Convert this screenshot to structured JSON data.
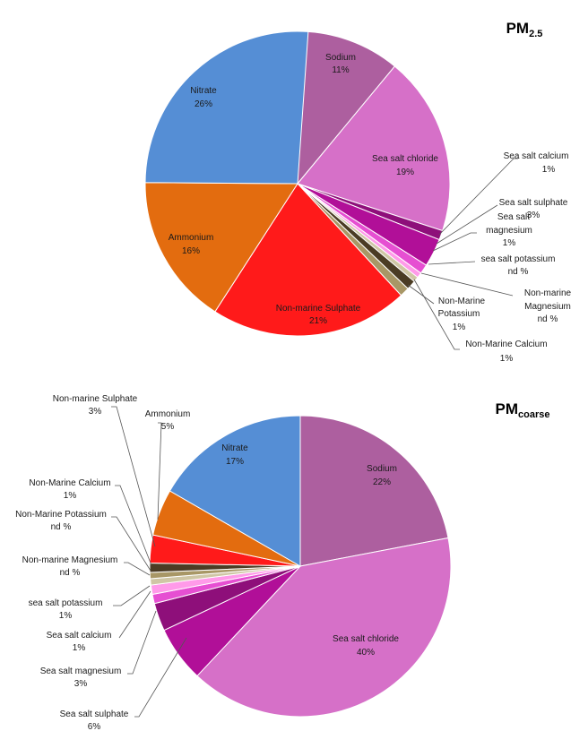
{
  "chart_data": [
    {
      "type": "pie",
      "title": "PM",
      "title_subscript": "2.5",
      "unit": "%",
      "slices": [
        {
          "name": "Sodium",
          "value": 11,
          "display": "11%",
          "color": "#ad5f9f"
        },
        {
          "name": "Sea salt chloride",
          "value": 19,
          "display": "19%",
          "color": "#d670c8"
        },
        {
          "name": "Sea salt calcium",
          "value": 1,
          "display": "1%",
          "color": "#8e0f7a"
        },
        {
          "name": "Sea salt sulphate",
          "value": 3,
          "display": "3%",
          "color": "#b10f98"
        },
        {
          "name": "Sea salt magnesium",
          "value": 1,
          "display": "1%",
          "color": "#e64fd2"
        },
        {
          "name": "sea salt potassium",
          "value": 0,
          "display": "nd %",
          "color": "#ff9ae9"
        },
        {
          "name": "Non-marine Magnesium",
          "value": 0,
          "display": "nd %",
          "color": "#cfc6a5"
        },
        {
          "name": "Non-Marine Calcium",
          "value": 1,
          "display": "1%",
          "color": "#4b3c24"
        },
        {
          "name": "Non-Marine Potassium",
          "value": 1,
          "display": "1%",
          "color": "#a89766"
        },
        {
          "name": "Non-marine Sulphate",
          "value": 21,
          "display": "21%",
          "color": "#ff1a1a"
        },
        {
          "name": "Ammonium",
          "value": 16,
          "display": "16%",
          "color": "#e36c0f"
        },
        {
          "name": "Nitrate",
          "value": 26,
          "display": "26%",
          "color": "#558ed5"
        }
      ]
    },
    {
      "type": "pie",
      "title": "PM",
      "title_subscript": "coarse",
      "unit": "%",
      "slices": [
        {
          "name": "Sodium",
          "value": 22,
          "display": "22%",
          "color": "#ad5f9f"
        },
        {
          "name": "Sea salt chloride",
          "value": 40,
          "display": "40%",
          "color": "#d670c8"
        },
        {
          "name": "Sea salt sulphate",
          "value": 6,
          "display": "6%",
          "color": "#b10f98"
        },
        {
          "name": "Sea salt magnesium",
          "value": 3,
          "display": "3%",
          "color": "#8e0f7a"
        },
        {
          "name": "Sea salt calcium",
          "value": 1,
          "display": "1%",
          "color": "#e64fd2"
        },
        {
          "name": "sea salt potassium",
          "value": 1,
          "display": "1%",
          "color": "#ff9ae9"
        },
        {
          "name": "Non-marine Magnesium",
          "value": 0,
          "display": "nd %",
          "color": "#cfc6a5"
        },
        {
          "name": "Non-Marine Potassium",
          "value": 0,
          "display": "nd %",
          "color": "#a89766"
        },
        {
          "name": "Non-Marine Calcium",
          "value": 1,
          "display": "1%",
          "color": "#4b3c24"
        },
        {
          "name": "Non-marine Sulphate",
          "value": 3,
          "display": "3%",
          "color": "#ff1a1a"
        },
        {
          "name": "Ammonium",
          "value": 5,
          "display": "5%",
          "color": "#e36c0f"
        },
        {
          "name": "Nitrate",
          "value": 17,
          "display": "17%",
          "color": "#558ed5"
        }
      ]
    }
  ]
}
